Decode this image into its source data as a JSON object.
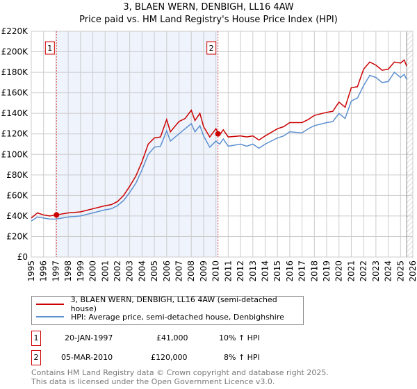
{
  "title": "3, BLAEN WERN, DENBIGH, LL16 4AW",
  "subtitle": "Price paid vs. HM Land Registry's House Price Index (HPI)",
  "chart_data": {
    "type": "line",
    "title": "3, BLAEN WERN, DENBIGH, LL16 4AW",
    "subtitle": "Price paid vs. HM Land Registry's House Price Index (HPI)",
    "xlim": [
      1995,
      2026
    ],
    "ylim": [
      0,
      220000
    ],
    "grid": true,
    "x_ticks": [
      "1995",
      "1996",
      "1997",
      "1998",
      "1999",
      "2000",
      "2001",
      "2002",
      "2003",
      "2004",
      "2005",
      "2006",
      "2007",
      "2008",
      "2009",
      "2010",
      "2011",
      "2012",
      "2013",
      "2014",
      "2015",
      "2016",
      "2017",
      "2018",
      "2019",
      "2020",
      "2021",
      "2022",
      "2023",
      "2024",
      "2025",
      "2026"
    ],
    "y_ticks": [
      {
        "v": 0,
        "label": "£0"
      },
      {
        "v": 20000,
        "label": "£20K"
      },
      {
        "v": 40000,
        "label": "£40K"
      },
      {
        "v": 60000,
        "label": "£60K"
      },
      {
        "v": 80000,
        "label": "£80K"
      },
      {
        "v": 100000,
        "label": "£100K"
      },
      {
        "v": 120000,
        "label": "£120K"
      },
      {
        "v": 140000,
        "label": "£140K"
      },
      {
        "v": 160000,
        "label": "£160K"
      },
      {
        "v": 180000,
        "label": "£180K"
      },
      {
        "v": 200000,
        "label": "£200K"
      },
      {
        "v": 220000,
        "label": "£220K"
      }
    ],
    "x": [
      1995,
      1995.5,
      1996,
      1996.5,
      1997,
      1998,
      1999,
      2000,
      2001,
      2001.5,
      2002,
      2002.5,
      2003,
      2003.5,
      2004,
      2004.5,
      2005,
      2005.5,
      2006,
      2006.3,
      2007,
      2007.5,
      2008,
      2008.3,
      2008.7,
      2009,
      2009.5,
      2010,
      2010.3,
      2010.6,
      2011,
      2012,
      2012.5,
      2013,
      2013.5,
      2014,
      2015,
      2015.5,
      2016,
      2017,
      2017.5,
      2018,
      2019,
      2019.5,
      2020,
      2020.5,
      2021,
      2021.5,
      2022,
      2022.5,
      2023,
      2023.5,
      2024,
      2024.5,
      2025,
      2025.3,
      2025.5
    ],
    "series": [
      {
        "name": "3, BLAEN WERN, DENBIGH, LL16 4AW (semi-detached house)",
        "color": "#cc0000",
        "values": [
          38000,
          43000,
          41000,
          40000,
          41000,
          43000,
          44000,
          47000,
          50000,
          51000,
          54000,
          60000,
          69000,
          79000,
          93000,
          110000,
          116000,
          117000,
          134000,
          122000,
          132000,
          135000,
          143000,
          133000,
          140000,
          127000,
          117000,
          125000,
          119000,
          124000,
          117000,
          118000,
          117000,
          118000,
          114000,
          118000,
          125000,
          127000,
          131000,
          131000,
          134000,
          138000,
          141000,
          142000,
          151000,
          146000,
          165000,
          166000,
          183000,
          190000,
          187000,
          182000,
          183000,
          190000,
          189000,
          192000,
          186000
        ]
      },
      {
        "name": "HPI: Average price, semi-detached house, Denbighshire",
        "color": "#5b8fd0",
        "values": [
          35000,
          39000,
          38000,
          37000,
          37000,
          39000,
          40000,
          43000,
          46000,
          47000,
          50000,
          55000,
          63000,
          72000,
          85000,
          100000,
          107000,
          108000,
          123000,
          113000,
          120000,
          125000,
          130000,
          122000,
          128000,
          118000,
          107000,
          113000,
          110000,
          115000,
          108000,
          110000,
          108000,
          110000,
          106000,
          110000,
          116000,
          118000,
          122000,
          121000,
          125000,
          128000,
          131000,
          132000,
          140000,
          135000,
          152000,
          155000,
          167000,
          177000,
          175000,
          170000,
          171000,
          180000,
          175000,
          178000,
          173000
        ]
      }
    ],
    "sales": [
      {
        "id": "1",
        "x": 1997.05,
        "value": 41000
      },
      {
        "id": "2",
        "x": 2010.17,
        "value": 120000
      }
    ],
    "legend_position": "bottom"
  },
  "legend": [
    {
      "label": "3, BLAEN WERN, DENBIGH, LL16 4AW (semi-detached house)",
      "color": "#cc0000"
    },
    {
      "label": "HPI: Average price, semi-detached house, Denbighshire",
      "color": "#5b8fd0"
    }
  ],
  "transactions": [
    {
      "id": "1",
      "date": "20-JAN-1997",
      "price": "£41,000",
      "hpi": "10% ↑ HPI"
    },
    {
      "id": "2",
      "date": "05-MAR-2010",
      "price": "£120,000",
      "hpi": "8% ↑ HPI"
    }
  ],
  "footer": [
    "Contains HM Land Registry data © Crown copyright and database right 2025.",
    "This data is licensed under the Open Government Licence v3.0."
  ]
}
